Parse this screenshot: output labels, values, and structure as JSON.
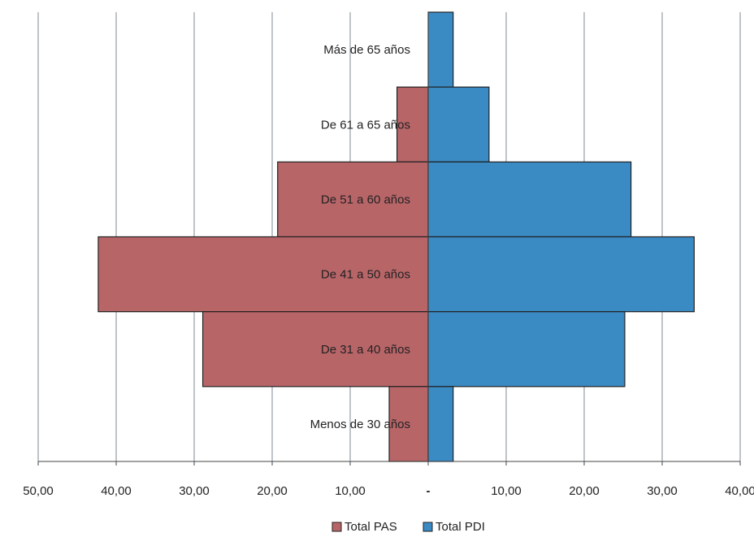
{
  "chart_data": {
    "type": "bar",
    "orientation": "horizontal",
    "layout": "population-pyramid",
    "categories": [
      "Más de 65 años",
      "De 61 a 65 años",
      "De 51 a 60 años",
      "De 41 a 50 años",
      "De 31 a 40 años",
      "Menos de 30 años"
    ],
    "series": [
      {
        "name": "Total PAS",
        "side": "left",
        "color": "#b86568",
        "values": [
          0,
          4.0,
          19.3,
          42.3,
          28.9,
          5.0
        ]
      },
      {
        "name": "Total PDI",
        "side": "right",
        "color": "#3a8ac4",
        "values": [
          3.2,
          7.8,
          26.0,
          34.1,
          25.2,
          3.2
        ]
      }
    ],
    "xlim": [
      -50,
      40
    ],
    "x_ticks": [
      {
        "value": -50,
        "label": "50,00"
      },
      {
        "value": -40,
        "label": "40,00"
      },
      {
        "value": -30,
        "label": "30,00"
      },
      {
        "value": -20,
        "label": "20,00"
      },
      {
        "value": -10,
        "label": "10,00"
      },
      {
        "value": 0,
        "label": "-"
      },
      {
        "value": 10,
        "label": "10,00"
      },
      {
        "value": 20,
        "label": "20,00"
      },
      {
        "value": 30,
        "label": "30,00"
      },
      {
        "value": 40,
        "label": "40,00"
      }
    ],
    "grid": true,
    "legend": "bottom",
    "title": "",
    "xlabel": "",
    "ylabel": ""
  }
}
